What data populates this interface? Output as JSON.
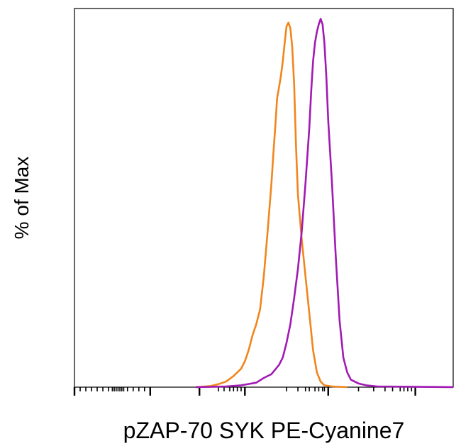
{
  "chart_data": {
    "type": "line",
    "title": "",
    "xlabel": "pZAP-70 SYK PE-Cyanine7",
    "ylabel": "% of Max",
    "x_scale": "biexponential",
    "x_tick_labels": false,
    "y_tick_labels": false,
    "grid": false,
    "legend": "none",
    "xlim": [
      0,
      1
    ],
    "ylim": [
      0,
      100
    ],
    "series": [
      {
        "color": "#f0861c",
        "points": [
          [
            0.32,
            0
          ],
          [
            0.36,
            0.3
          ],
          [
            0.38,
            0.8
          ],
          [
            0.4,
            1.5
          ],
          [
            0.42,
            3
          ],
          [
            0.44,
            5
          ],
          [
            0.45,
            7
          ],
          [
            0.46,
            10
          ],
          [
            0.47,
            14
          ],
          [
            0.48,
            17
          ],
          [
            0.49,
            21
          ],
          [
            0.5,
            30
          ],
          [
            0.51,
            42
          ],
          [
            0.52,
            55
          ],
          [
            0.525,
            63
          ],
          [
            0.53,
            70
          ],
          [
            0.535,
            78
          ],
          [
            0.54,
            81
          ],
          [
            0.545,
            84
          ],
          [
            0.55,
            88
          ],
          [
            0.555,
            93
          ],
          [
            0.56,
            97.5
          ],
          [
            0.565,
            98.5
          ],
          [
            0.57,
            97
          ],
          [
            0.575,
            92
          ],
          [
            0.58,
            82
          ],
          [
            0.585,
            65
          ],
          [
            0.59,
            52
          ],
          [
            0.6,
            40
          ],
          [
            0.61,
            30
          ],
          [
            0.62,
            20
          ],
          [
            0.63,
            10
          ],
          [
            0.64,
            4
          ],
          [
            0.65,
            1.5
          ],
          [
            0.66,
            0.5
          ],
          [
            0.68,
            0.2
          ],
          [
            0.72,
            0
          ]
        ]
      },
      {
        "color": "#a11ab4",
        "points": [
          [
            0.32,
            0
          ],
          [
            0.4,
            0.2
          ],
          [
            0.44,
            0.5
          ],
          [
            0.48,
            1.2
          ],
          [
            0.5,
            2.5
          ],
          [
            0.52,
            3.5
          ],
          [
            0.54,
            6
          ],
          [
            0.55,
            8
          ],
          [
            0.56,
            12
          ],
          [
            0.57,
            17
          ],
          [
            0.58,
            24
          ],
          [
            0.59,
            32
          ],
          [
            0.6,
            42
          ],
          [
            0.61,
            55
          ],
          [
            0.62,
            70
          ],
          [
            0.625,
            80
          ],
          [
            0.63,
            88
          ],
          [
            0.635,
            93
          ],
          [
            0.64,
            96
          ],
          [
            0.645,
            98
          ],
          [
            0.65,
            99.5
          ],
          [
            0.655,
            98
          ],
          [
            0.66,
            93
          ],
          [
            0.665,
            84
          ],
          [
            0.67,
            72
          ],
          [
            0.68,
            55
          ],
          [
            0.69,
            35
          ],
          [
            0.7,
            18
          ],
          [
            0.71,
            8
          ],
          [
            0.72,
            4
          ],
          [
            0.73,
            2
          ],
          [
            0.75,
            1
          ],
          [
            0.77,
            0.5
          ],
          [
            0.8,
            0.2
          ],
          [
            1.0,
            0
          ]
        ]
      }
    ]
  }
}
